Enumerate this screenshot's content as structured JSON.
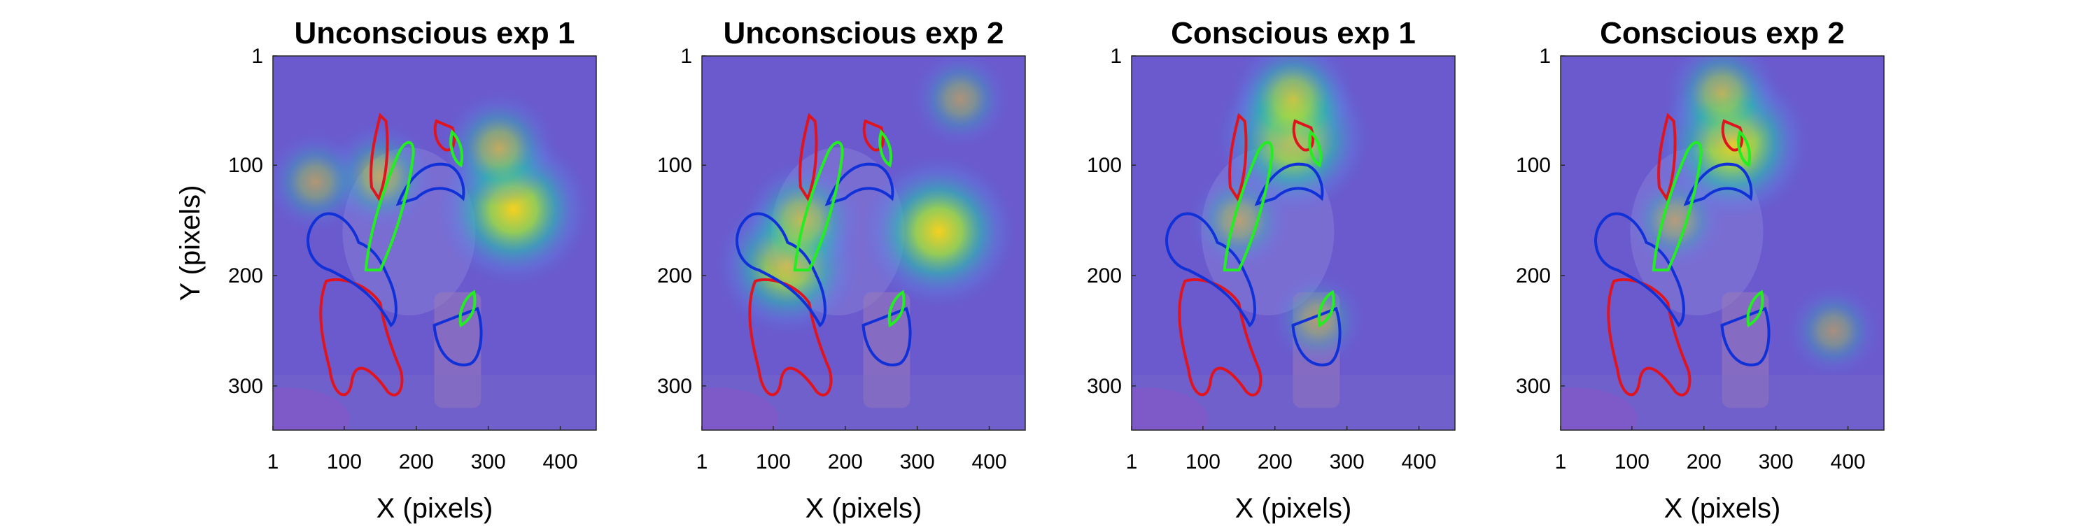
{
  "chart_data": [
    {
      "type": "heatmap",
      "title": "Unconscious exp 1",
      "xlabel": "X (pixels)",
      "ylabel": "Y (pixels)",
      "xticks": [
        1,
        100,
        200,
        300,
        400
      ],
      "yticks": [
        1,
        100,
        200,
        300
      ],
      "xlim": [
        1,
        450
      ],
      "ylim": [
        1,
        340
      ],
      "hotspots": [
        {
          "x": 335,
          "y": 140,
          "intensity": 1.0
        },
        {
          "x": 315,
          "y": 85,
          "intensity": 0.45
        },
        {
          "x": 150,
          "y": 110,
          "intensity": 0.35
        },
        {
          "x": 60,
          "y": 115,
          "intensity": 0.25
        }
      ]
    },
    {
      "type": "heatmap",
      "title": "Unconscious exp 2",
      "xlabel": "X (pixels)",
      "ylabel": "",
      "xticks": [
        1,
        100,
        200,
        300,
        400
      ],
      "yticks": [
        1,
        100,
        200,
        300
      ],
      "xlim": [
        1,
        450
      ],
      "ylim": [
        1,
        340
      ],
      "hotspots": [
        {
          "x": 330,
          "y": 160,
          "intensity": 1.0
        },
        {
          "x": 120,
          "y": 190,
          "intensity": 0.85
        },
        {
          "x": 140,
          "y": 150,
          "intensity": 0.5
        },
        {
          "x": 360,
          "y": 40,
          "intensity": 0.2
        }
      ]
    },
    {
      "type": "heatmap",
      "title": "Conscious exp 1",
      "xlabel": "X (pixels)",
      "ylabel": "",
      "xticks": [
        1,
        100,
        200,
        300,
        400
      ],
      "yticks": [
        1,
        100,
        200,
        300
      ],
      "xlim": [
        1,
        450
      ],
      "ylim": [
        1,
        340
      ],
      "hotspots": [
        {
          "x": 225,
          "y": 75,
          "intensity": 1.0
        },
        {
          "x": 225,
          "y": 40,
          "intensity": 0.6
        },
        {
          "x": 150,
          "y": 150,
          "intensity": 0.25
        },
        {
          "x": 260,
          "y": 240,
          "intensity": 0.15
        }
      ]
    },
    {
      "type": "heatmap",
      "title": "Conscious exp 2",
      "xlabel": "X (pixels)",
      "ylabel": "",
      "xticks": [
        1,
        100,
        200,
        300,
        400
      ],
      "yticks": [
        1,
        100,
        200,
        300
      ],
      "xlim": [
        1,
        450
      ],
      "ylim": [
        1,
        340
      ],
      "hotspots": [
        {
          "x": 240,
          "y": 80,
          "intensity": 1.0
        },
        {
          "x": 225,
          "y": 35,
          "intensity": 0.45
        },
        {
          "x": 380,
          "y": 250,
          "intensity": 0.15
        },
        {
          "x": 160,
          "y": 150,
          "intensity": 0.2
        }
      ]
    }
  ],
  "colors": {
    "background": "#6a5acd",
    "heat_low": "#5a6fe0",
    "heat_mid": "#29c0b0",
    "heat_high": "#f5d020",
    "contour_red": "#e0141e",
    "contour_blue": "#1030d8",
    "contour_green": "#22ee22"
  }
}
